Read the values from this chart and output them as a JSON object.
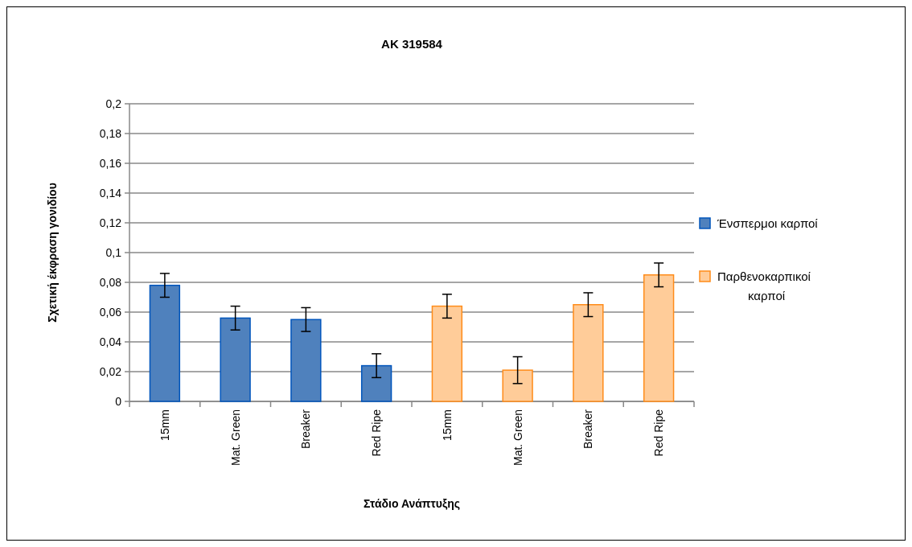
{
  "chart_data": {
    "type": "bar",
    "title": "AK 319584",
    "xlabel": "Στάδιο Ανάπτυξης",
    "ylabel": "Σχετική έκφραση γονιδίου",
    "categories": [
      "15mm",
      "Mat. Green",
      "Breaker",
      "Red Ripe",
      "15mm",
      "Mat. Green",
      "Breaker",
      "Red Ripe"
    ],
    "series": [
      {
        "name": "Ένσπερμοι καρποί",
        "color": "#4f81bd",
        "values": [
          0.078,
          0.056,
          0.055,
          0.024,
          null,
          null,
          null,
          null
        ],
        "errors": [
          0.008,
          0.008,
          0.008,
          0.008,
          null,
          null,
          null,
          null
        ]
      },
      {
        "name": "Παρθενοκαρπικοί καρποί",
        "color": "#ffcc99",
        "values": [
          null,
          null,
          null,
          null,
          0.064,
          0.021,
          0.065,
          0.085
        ],
        "errors": [
          null,
          null,
          null,
          null,
          0.008,
          0.009,
          0.008,
          0.008
        ]
      }
    ],
    "ylim": [
      0,
      0.2
    ],
    "yticks": [
      {
        "value": 0,
        "label": "0"
      },
      {
        "value": 0.02,
        "label": "0,02"
      },
      {
        "value": 0.04,
        "label": "0,04"
      },
      {
        "value": 0.06,
        "label": "0,06"
      },
      {
        "value": 0.08,
        "label": "0,08"
      },
      {
        "value": 0.1,
        "label": "0,1"
      },
      {
        "value": 0.12,
        "label": "0,12"
      },
      {
        "value": 0.14,
        "label": "0,14"
      },
      {
        "value": 0.16,
        "label": "0,16"
      },
      {
        "value": 0.18,
        "label": "0,18"
      },
      {
        "value": 0.2,
        "label": "0,2"
      }
    ],
    "grid": "y",
    "legend": "right"
  }
}
